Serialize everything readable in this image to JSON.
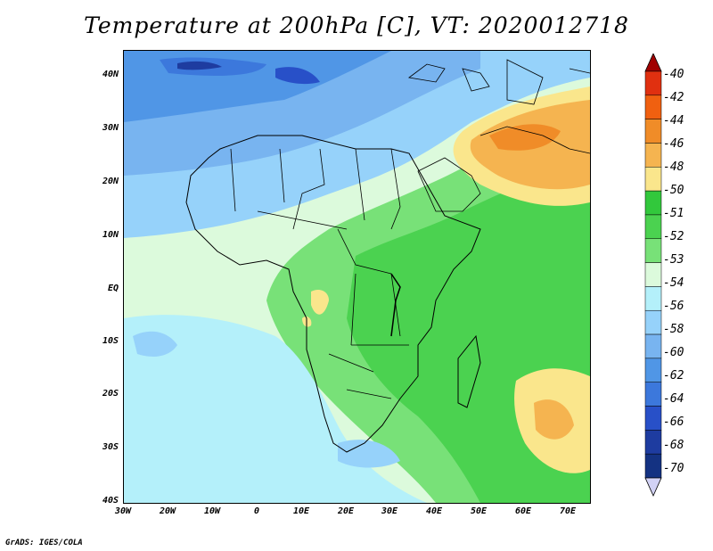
{
  "title": "Temperature at 200hPa [C], VT: 2020012718",
  "credit": "GrADS: IGES/COLA",
  "lat_labels": [
    "40N",
    "30N",
    "20N",
    "10N",
    "EQ",
    "10S",
    "20S",
    "30S",
    "40S"
  ],
  "lon_labels": [
    "30W",
    "20W",
    "10W",
    "0",
    "10E",
    "20E",
    "30E",
    "40E",
    "50E",
    "60E",
    "70E"
  ],
  "legend": {
    "levels": [
      "-40",
      "-42",
      "-44",
      "-46",
      "-48",
      "-50",
      "-51",
      "-52",
      "-53",
      "-54",
      "-56",
      "-58",
      "-60",
      "-62",
      "-64",
      "-66",
      "-68",
      "-70"
    ],
    "colors": [
      "#a00000",
      "#e03010",
      "#f06010",
      "#f08c28",
      "#f5b450",
      "#fae68c",
      "#32c83c",
      "#4bd250",
      "#78e178",
      "#dcfadc",
      "#b4f0fa",
      "#96d2fa",
      "#78b4f0",
      "#5096e6",
      "#3c78dc",
      "#2850c8",
      "#1e3ca0",
      "#143282"
    ]
  },
  "colors": {
    "ocean_cold": "#b4f0fa",
    "ocean_light": "#dcfadc",
    "land_green": "#4bd250",
    "land_mid": "#78e178",
    "north_blue": "#78b4f0",
    "warm_orange": "#f5b450",
    "warm_yellow": "#fae68c",
    "dark_blue": "#2850c8"
  }
}
